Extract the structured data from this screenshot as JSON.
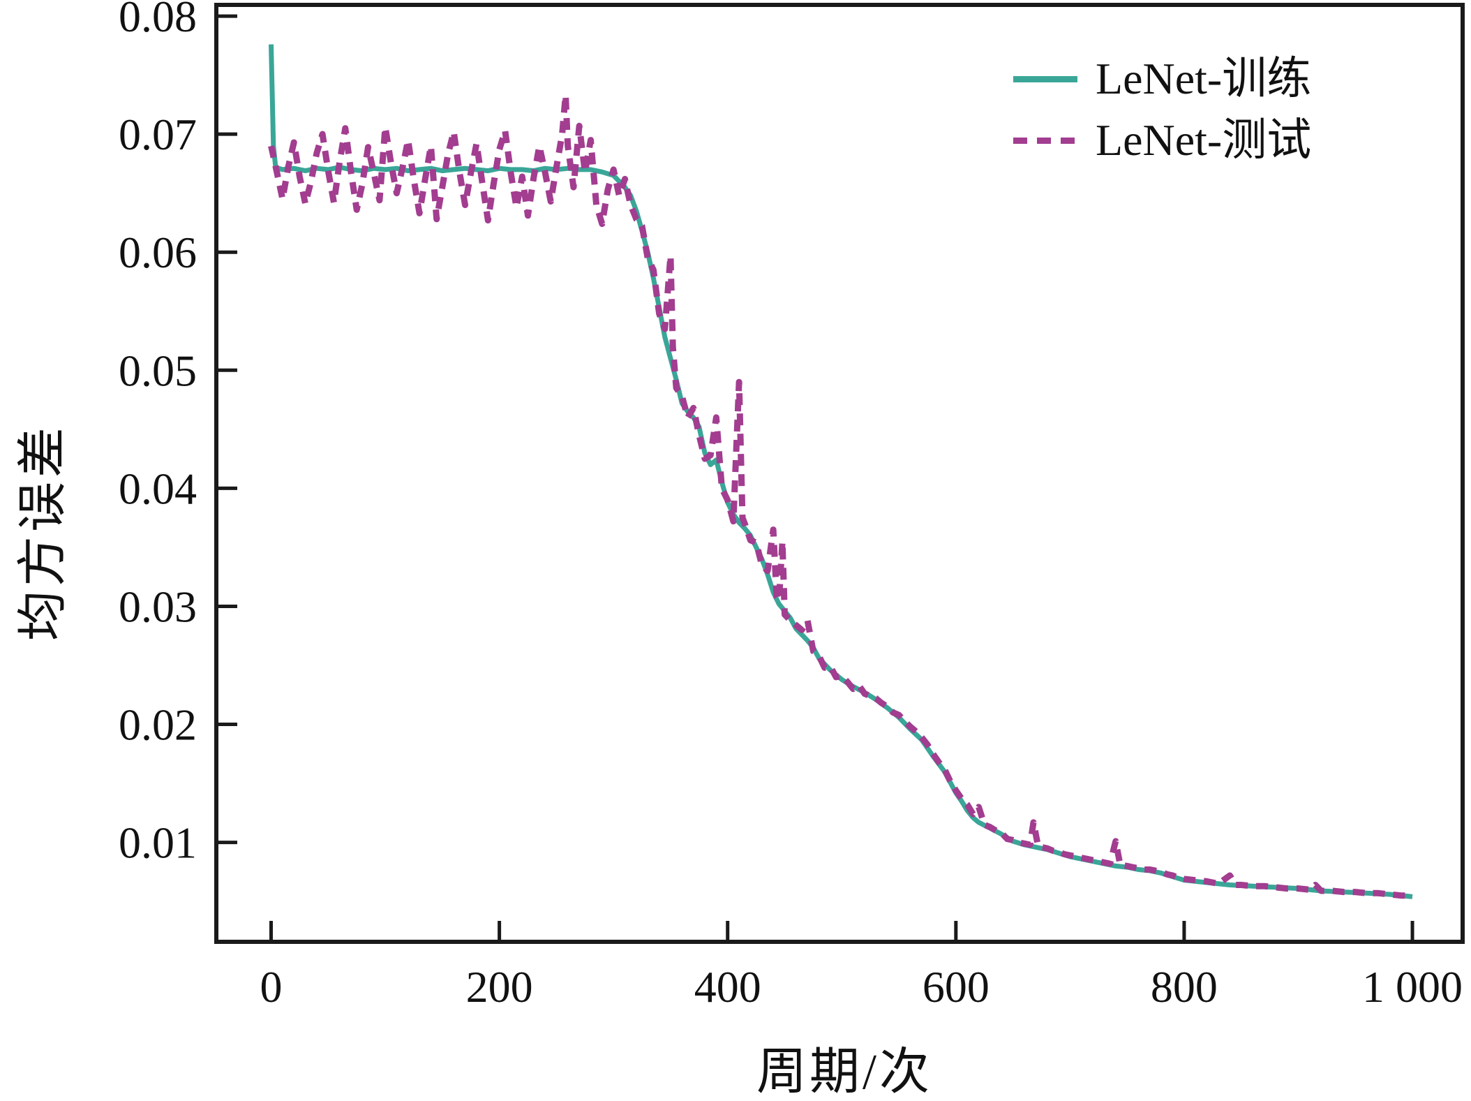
{
  "figure": {
    "background": "#ffffff",
    "axis_color": "#1a1a1a",
    "text_color": "#111111"
  },
  "chart_data": {
    "type": "line",
    "title": "",
    "xlabel": "周期/次",
    "ylabel": "均方误差",
    "xlim": [
      -48,
      1044
    ],
    "ylim": [
      0.00158,
      0.08095
    ],
    "grid": false,
    "legend_position": "upper right",
    "x_ticks": {
      "values": [
        0,
        200,
        400,
        600,
        800,
        1000
      ],
      "labels": [
        "0",
        "200",
        "400",
        "600",
        "800",
        "1 000"
      ]
    },
    "y_ticks": {
      "values": [
        0.01,
        0.02,
        0.03,
        0.04,
        0.05,
        0.06,
        0.07,
        0.08
      ],
      "labels": [
        "0.01",
        "0.02",
        "0.03",
        "0.04",
        "0.05",
        "0.06",
        "0.07",
        "0.08"
      ]
    },
    "series": [
      {
        "name": "LeNet-训练",
        "color": "#39a698",
        "style": "solid",
        "points": [
          [
            0,
            0.0776
          ],
          [
            2,
            0.069
          ],
          [
            4,
            0.0672
          ],
          [
            10,
            0.067
          ],
          [
            20,
            0.0671
          ],
          [
            30,
            0.0669
          ],
          [
            40,
            0.0671
          ],
          [
            50,
            0.067
          ],
          [
            60,
            0.0672
          ],
          [
            70,
            0.067
          ],
          [
            80,
            0.0669
          ],
          [
            90,
            0.0671
          ],
          [
            100,
            0.067
          ],
          [
            110,
            0.0671
          ],
          [
            120,
            0.0669
          ],
          [
            130,
            0.067
          ],
          [
            140,
            0.0671
          ],
          [
            150,
            0.0669
          ],
          [
            160,
            0.067
          ],
          [
            170,
            0.0671
          ],
          [
            180,
            0.067
          ],
          [
            190,
            0.0669
          ],
          [
            200,
            0.0671
          ],
          [
            210,
            0.067
          ],
          [
            220,
            0.067
          ],
          [
            230,
            0.0669
          ],
          [
            240,
            0.0671
          ],
          [
            250,
            0.067
          ],
          [
            260,
            0.0671
          ],
          [
            270,
            0.067
          ],
          [
            280,
            0.067
          ],
          [
            290,
            0.0668
          ],
          [
            300,
            0.0665
          ],
          [
            310,
            0.0655
          ],
          [
            315,
            0.0648
          ],
          [
            320,
            0.0635
          ],
          [
            325,
            0.0618
          ],
          [
            330,
            0.06
          ],
          [
            335,
            0.0578
          ],
          [
            340,
            0.0553
          ],
          [
            345,
            0.0528
          ],
          [
            350,
            0.051
          ],
          [
            355,
            0.0492
          ],
          [
            360,
            0.0472
          ],
          [
            365,
            0.0465
          ],
          [
            370,
            0.046
          ],
          [
            375,
            0.0452
          ],
          [
            380,
            0.043
          ],
          [
            385,
            0.042
          ],
          [
            390,
            0.0424
          ],
          [
            395,
            0.0405
          ],
          [
            400,
            0.0388
          ],
          [
            405,
            0.0378
          ],
          [
            410,
            0.0371
          ],
          [
            415,
            0.0366
          ],
          [
            420,
            0.036
          ],
          [
            425,
            0.035
          ],
          [
            430,
            0.034
          ],
          [
            435,
            0.0327
          ],
          [
            440,
            0.0312
          ],
          [
            445,
            0.0302
          ],
          [
            450,
            0.0296
          ],
          [
            455,
            0.029
          ],
          [
            460,
            0.0281
          ],
          [
            465,
            0.0276
          ],
          [
            470,
            0.0271
          ],
          [
            475,
            0.0265
          ],
          [
            480,
            0.0256
          ],
          [
            485,
            0.0251
          ],
          [
            490,
            0.0246
          ],
          [
            495,
            0.0242
          ],
          [
            500,
            0.0238
          ],
          [
            510,
            0.0232
          ],
          [
            520,
            0.0227
          ],
          [
            530,
            0.0221
          ],
          [
            540,
            0.0214
          ],
          [
            550,
            0.0206
          ],
          [
            560,
            0.0196
          ],
          [
            570,
            0.0187
          ],
          [
            580,
            0.0173
          ],
          [
            590,
            0.016
          ],
          [
            600,
            0.0142
          ],
          [
            605,
            0.0135
          ],
          [
            610,
            0.0127
          ],
          [
            615,
            0.0121
          ],
          [
            620,
            0.0117
          ],
          [
            630,
            0.0112
          ],
          [
            640,
            0.0107
          ],
          [
            650,
            0.0101
          ],
          [
            660,
            0.0098
          ],
          [
            670,
            0.0096
          ],
          [
            680,
            0.0094
          ],
          [
            690,
            0.0091
          ],
          [
            700,
            0.0088
          ],
          [
            710,
            0.0086
          ],
          [
            720,
            0.0084
          ],
          [
            730,
            0.0082
          ],
          [
            740,
            0.008
          ],
          [
            750,
            0.0079
          ],
          [
            760,
            0.0077
          ],
          [
            770,
            0.0076
          ],
          [
            780,
            0.0074
          ],
          [
            790,
            0.0071
          ],
          [
            800,
            0.0068
          ],
          [
            820,
            0.0066
          ],
          [
            840,
            0.0064
          ],
          [
            860,
            0.0063
          ],
          [
            880,
            0.0062
          ],
          [
            900,
            0.0061
          ],
          [
            920,
            0.0059
          ],
          [
            940,
            0.0058
          ],
          [
            960,
            0.0057
          ],
          [
            980,
            0.0056
          ],
          [
            1000,
            0.0054
          ]
        ]
      },
      {
        "name": "LeNet-测试",
        "color": "#a23d90",
        "style": "dashed",
        "points": [
          [
            0,
            0.069
          ],
          [
            5,
            0.0668
          ],
          [
            10,
            0.0645
          ],
          [
            15,
            0.0672
          ],
          [
            20,
            0.0693
          ],
          [
            25,
            0.0664
          ],
          [
            30,
            0.0641
          ],
          [
            35,
            0.066
          ],
          [
            40,
            0.0684
          ],
          [
            45,
            0.07
          ],
          [
            50,
            0.0669
          ],
          [
            55,
            0.0642
          ],
          [
            60,
            0.0676
          ],
          [
            65,
            0.0705
          ],
          [
            70,
            0.0668
          ],
          [
            75,
            0.0636
          ],
          [
            80,
            0.0658
          ],
          [
            85,
            0.0689
          ],
          [
            90,
            0.0667
          ],
          [
            95,
            0.0644
          ],
          [
            100,
            0.0706
          ],
          [
            105,
            0.0676
          ],
          [
            110,
            0.065
          ],
          [
            115,
            0.0671
          ],
          [
            120,
            0.0695
          ],
          [
            125,
            0.0662
          ],
          [
            130,
            0.0633
          ],
          [
            135,
            0.0662
          ],
          [
            140,
            0.069
          ],
          [
            145,
            0.0628
          ],
          [
            150,
            0.0655
          ],
          [
            155,
            0.0683
          ],
          [
            160,
            0.0702
          ],
          [
            165,
            0.0668
          ],
          [
            170,
            0.064
          ],
          [
            175,
            0.0667
          ],
          [
            180,
            0.0692
          ],
          [
            185,
            0.0659
          ],
          [
            190,
            0.0627
          ],
          [
            195,
            0.0658
          ],
          [
            200,
            0.0687
          ],
          [
            205,
            0.0703
          ],
          [
            210,
            0.0667
          ],
          [
            215,
            0.0638
          ],
          [
            220,
            0.0664
          ],
          [
            225,
            0.0631
          ],
          [
            230,
            0.0663
          ],
          [
            235,
            0.069
          ],
          [
            240,
            0.0668
          ],
          [
            245,
            0.0643
          ],
          [
            250,
            0.0672
          ],
          [
            255,
            0.07
          ],
          [
            258,
            0.0733
          ],
          [
            260,
            0.069
          ],
          [
            265,
            0.0655
          ],
          [
            270,
            0.0707
          ],
          [
            275,
            0.0668
          ],
          [
            280,
            0.0695
          ],
          [
            285,
            0.064
          ],
          [
            290,
            0.0624
          ],
          [
            295,
            0.0653
          ],
          [
            300,
            0.067
          ],
          [
            305,
            0.0648
          ],
          [
            310,
            0.0662
          ],
          [
            315,
            0.064
          ],
          [
            320,
            0.0628
          ],
          [
            325,
            0.0622
          ],
          [
            330,
            0.0595
          ],
          [
            335,
            0.0585
          ],
          [
            340,
            0.0548
          ],
          [
            345,
            0.0535
          ],
          [
            350,
            0.0597
          ],
          [
            352,
            0.052
          ],
          [
            355,
            0.0485
          ],
          [
            360,
            0.0478
          ],
          [
            365,
            0.046
          ],
          [
            370,
            0.0468
          ],
          [
            375,
            0.0445
          ],
          [
            380,
            0.0425
          ],
          [
            385,
            0.0428
          ],
          [
            390,
            0.046
          ],
          [
            395,
            0.04
          ],
          [
            400,
            0.039
          ],
          [
            405,
            0.0372
          ],
          [
            410,
            0.049
          ],
          [
            413,
            0.0375
          ],
          [
            415,
            0.037
          ],
          [
            420,
            0.0356
          ],
          [
            425,
            0.0354
          ],
          [
            430,
            0.0335
          ],
          [
            435,
            0.033
          ],
          [
            440,
            0.0365
          ],
          [
            443,
            0.0308
          ],
          [
            445,
            0.0305
          ],
          [
            448,
            0.0355
          ],
          [
            450,
            0.0293
          ],
          [
            455,
            0.0288
          ],
          [
            460,
            0.0284
          ],
          [
            465,
            0.028
          ],
          [
            470,
            0.0288
          ],
          [
            475,
            0.0262
          ],
          [
            480,
            0.0258
          ],
          [
            485,
            0.0248
          ],
          [
            490,
            0.0249
          ],
          [
            495,
            0.024
          ],
          [
            500,
            0.0241
          ],
          [
            505,
            0.0236
          ],
          [
            510,
            0.023
          ],
          [
            515,
            0.0233
          ],
          [
            520,
            0.0226
          ],
          [
            525,
            0.0224
          ],
          [
            530,
            0.0222
          ],
          [
            535,
            0.0218
          ],
          [
            540,
            0.0215
          ],
          [
            545,
            0.021
          ],
          [
            550,
            0.0208
          ],
          [
            555,
            0.0203
          ],
          [
            560,
            0.0198
          ],
          [
            565,
            0.0194
          ],
          [
            570,
            0.0189
          ],
          [
            575,
            0.0183
          ],
          [
            580,
            0.0175
          ],
          [
            585,
            0.0168
          ],
          [
            590,
            0.0162
          ],
          [
            595,
            0.0152
          ],
          [
            600,
            0.0144
          ],
          [
            605,
            0.0137
          ],
          [
            610,
            0.0132
          ],
          [
            615,
            0.0124
          ],
          [
            620,
            0.013
          ],
          [
            625,
            0.0115
          ],
          [
            630,
            0.0113
          ],
          [
            635,
            0.011
          ],
          [
            640,
            0.0108
          ],
          [
            645,
            0.0103
          ],
          [
            650,
            0.0102
          ],
          [
            655,
            0.01
          ],
          [
            660,
            0.0099
          ],
          [
            665,
            0.0098
          ],
          [
            668,
            0.0117
          ],
          [
            672,
            0.0097
          ],
          [
            675,
            0.0096
          ],
          [
            680,
            0.0095
          ],
          [
            685,
            0.0093
          ],
          [
            690,
            0.0092
          ],
          [
            695,
            0.009
          ],
          [
            700,
            0.0089
          ],
          [
            705,
            0.0088
          ],
          [
            710,
            0.0087
          ],
          [
            715,
            0.0086
          ],
          [
            720,
            0.0085
          ],
          [
            725,
            0.0084
          ],
          [
            730,
            0.0083
          ],
          [
            735,
            0.0082
          ],
          [
            740,
            0.0101
          ],
          [
            744,
            0.0081
          ],
          [
            750,
            0.008
          ],
          [
            755,
            0.0079
          ],
          [
            760,
            0.0078
          ],
          [
            765,
            0.0077
          ],
          [
            770,
            0.0077
          ],
          [
            775,
            0.0076
          ],
          [
            780,
            0.0075
          ],
          [
            785,
            0.0073
          ],
          [
            790,
            0.0072
          ],
          [
            795,
            0.007
          ],
          [
            800,
            0.0069
          ],
          [
            810,
            0.0068
          ],
          [
            820,
            0.0067
          ],
          [
            830,
            0.0065
          ],
          [
            840,
            0.0072
          ],
          [
            845,
            0.0064
          ],
          [
            850,
            0.0064
          ],
          [
            860,
            0.0063
          ],
          [
            870,
            0.0063
          ],
          [
            880,
            0.0062
          ],
          [
            890,
            0.0061
          ],
          [
            900,
            0.0061
          ],
          [
            910,
            0.006
          ],
          [
            915,
            0.0064
          ],
          [
            920,
            0.0059
          ],
          [
            930,
            0.0059
          ],
          [
            940,
            0.0058
          ],
          [
            950,
            0.0058
          ],
          [
            960,
            0.0057
          ],
          [
            970,
            0.0057
          ],
          [
            980,
            0.0056
          ],
          [
            990,
            0.0055
          ],
          [
            1000,
            0.0055
          ]
        ]
      }
    ]
  }
}
